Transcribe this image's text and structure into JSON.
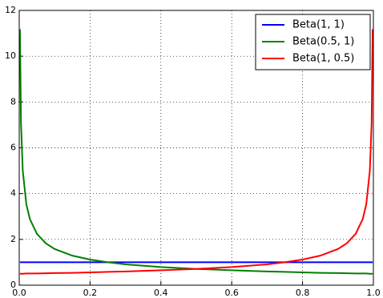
{
  "chart_data": {
    "type": "line",
    "x": [
      0.002,
      0.005,
      0.01,
      0.02,
      0.03,
      0.05,
      0.075,
      0.1,
      0.15,
      0.2,
      0.25,
      0.3,
      0.4,
      0.5,
      0.6,
      0.7,
      0.75,
      0.8,
      0.85,
      0.9,
      0.925,
      0.95,
      0.97,
      0.98,
      0.99,
      0.995,
      0.998
    ],
    "series": [
      {
        "name": "Beta(1, 1)",
        "color": "#0000ff",
        "values": [
          1,
          1,
          1,
          1,
          1,
          1,
          1,
          1,
          1,
          1,
          1,
          1,
          1,
          1,
          1,
          1,
          1,
          1,
          1,
          1,
          1,
          1,
          1,
          1,
          1,
          1,
          1
        ]
      },
      {
        "name": "Beta(0.5, 1)",
        "color": "#008000",
        "values": [
          11.18,
          7.07,
          5.0,
          3.54,
          2.89,
          2.24,
          1.83,
          1.58,
          1.29,
          1.12,
          1.0,
          0.91,
          0.79,
          0.71,
          0.65,
          0.6,
          0.58,
          0.56,
          0.54,
          0.53,
          0.52,
          0.51,
          0.51,
          0.51,
          0.5,
          0.5,
          0.5
        ]
      },
      {
        "name": "Beta(1, 0.5)",
        "color": "#ff0000",
        "values": [
          0.5,
          0.5,
          0.5,
          0.51,
          0.51,
          0.51,
          0.52,
          0.53,
          0.54,
          0.56,
          0.58,
          0.6,
          0.65,
          0.71,
          0.79,
          0.91,
          1.0,
          1.12,
          1.29,
          1.58,
          1.83,
          2.24,
          2.89,
          3.54,
          5.0,
          7.07,
          11.18
        ]
      }
    ],
    "xlim": [
      0,
      1
    ],
    "xticks": [
      {
        "value": 0,
        "label": "0.0"
      },
      0.2,
      0.4,
      0.6,
      0.8,
      {
        "value": 1,
        "label": "1.0"
      }
    ],
    "ylim": [
      0,
      12
    ],
    "yticks": [
      0,
      2,
      4,
      6,
      8,
      10,
      12
    ],
    "grid": true,
    "legend": "upper right"
  }
}
